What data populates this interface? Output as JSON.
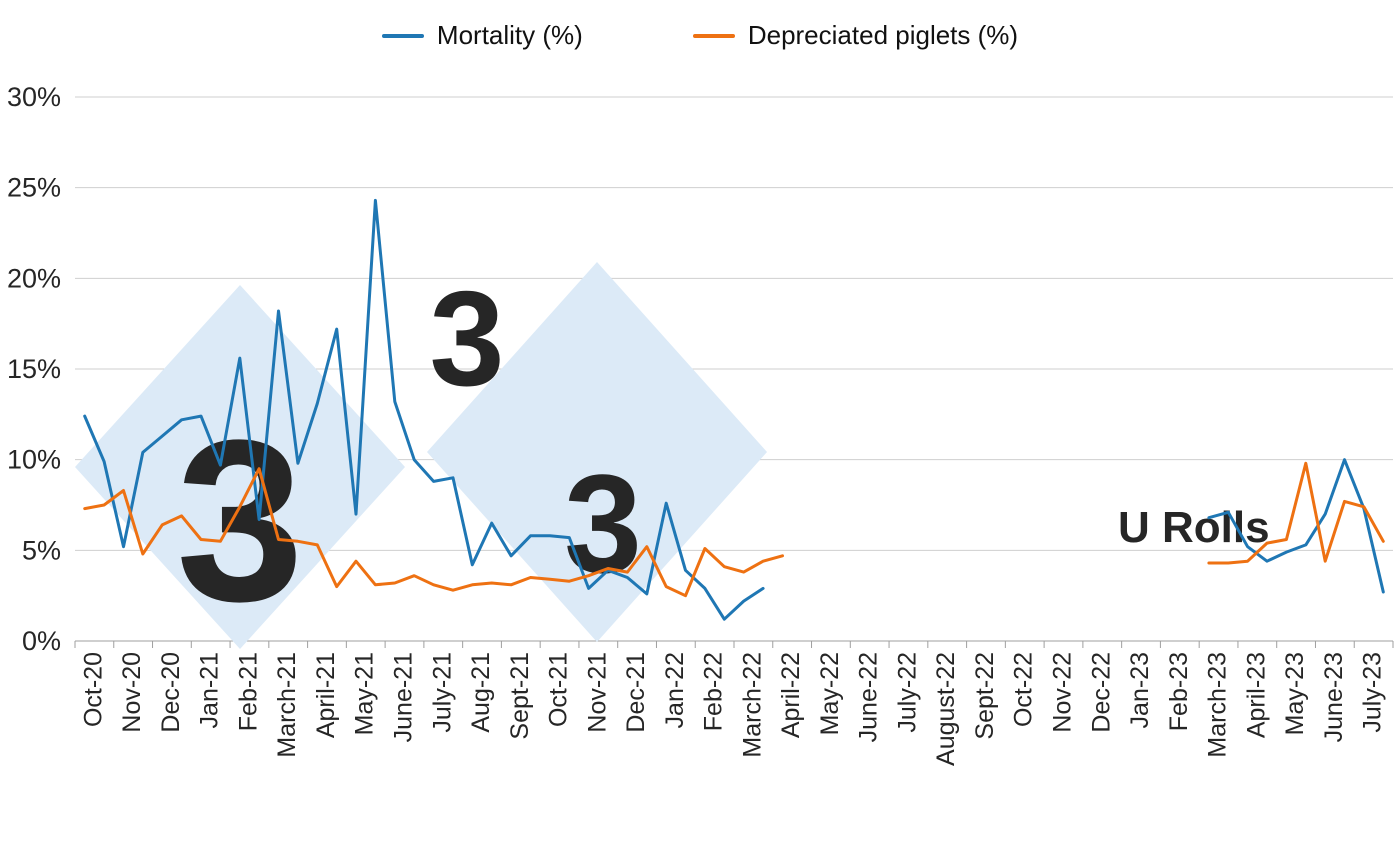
{
  "watermark": {
    "digit": "3",
    "text": "U Rolls",
    "diamond_color": "#dceaf7",
    "digit_on_diamond_color": "#ffffff",
    "digit_color": "#d5e7f6",
    "text_color": "#cfe3f4"
  },
  "chart_data": {
    "type": "line",
    "title": "",
    "xlabel": "",
    "ylabel": "",
    "ylim": [
      0,
      30
    ],
    "yticks": [
      0,
      5,
      10,
      15,
      20,
      25,
      30
    ],
    "ytick_format": "percent",
    "grid": "horizontal",
    "legend_position": "top",
    "xlabel_rotation": -90,
    "points_per_category": 2,
    "gap": "no data plotted between April-22 and March-23",
    "categories": [
      "Oct-20",
      "Nov-20",
      "Dec-20",
      "Jan-21",
      "Feb-21",
      "March-21",
      "April-21",
      "May-21",
      "June-21",
      "July-21",
      "Aug-21",
      "Sept-21",
      "Oct-21",
      "Nov-21",
      "Dec-21",
      "Jan-22",
      "Feb-22",
      "March-22",
      "April-22",
      "May-22",
      "June-22",
      "July-22",
      "August-22",
      "Sept-22",
      "Oct-22",
      "Nov-22",
      "Dec-22",
      "Jan-23",
      "Feb-23",
      "March-23",
      "April-23",
      "May-23",
      "June-23",
      "July-23"
    ],
    "series": [
      {
        "name": "Mortality (%)",
        "color": "#1f77b4",
        "values": [
          12.4,
          9.9,
          5.2,
          10.4,
          11.3,
          12.2,
          12.4,
          9.7,
          15.6,
          6.7,
          18.2,
          9.8,
          13.1,
          17.2,
          7.0,
          24.3,
          13.2,
          10.0,
          8.8,
          9.0,
          4.2,
          6.5,
          4.7,
          5.8,
          5.8,
          5.7,
          2.9,
          3.9,
          3.5,
          2.6,
          7.6,
          3.9,
          2.9,
          1.2,
          2.2,
          2.9,
          null,
          null,
          null,
          null,
          null,
          null,
          null,
          null,
          null,
          null,
          null,
          null,
          null,
          null,
          null,
          null,
          null,
          null,
          null,
          null,
          null,
          null,
          6.8,
          7.1,
          5.2,
          4.4,
          4.9,
          5.3,
          7.0,
          10.0,
          7.3,
          2.7
        ]
      },
      {
        "name": "Depreciated piglets (%)",
        "color": "#ee7112",
        "values": [
          7.3,
          7.5,
          8.3,
          4.8,
          6.4,
          6.9,
          5.6,
          5.5,
          7.4,
          9.5,
          5.6,
          5.5,
          5.3,
          3.0,
          4.4,
          3.1,
          3.2,
          3.6,
          3.1,
          2.8,
          3.1,
          3.2,
          3.1,
          3.5,
          3.4,
          3.3,
          3.6,
          4.0,
          3.8,
          5.2,
          3.0,
          2.5,
          5.1,
          4.1,
          3.8,
          4.4,
          4.7,
          null,
          null,
          null,
          null,
          null,
          null,
          null,
          null,
          null,
          null,
          null,
          null,
          null,
          null,
          null,
          null,
          null,
          null,
          null,
          null,
          null,
          4.3,
          4.3,
          4.4,
          5.4,
          5.6,
          9.8,
          4.4,
          7.7,
          7.4,
          5.5
        ]
      }
    ]
  }
}
